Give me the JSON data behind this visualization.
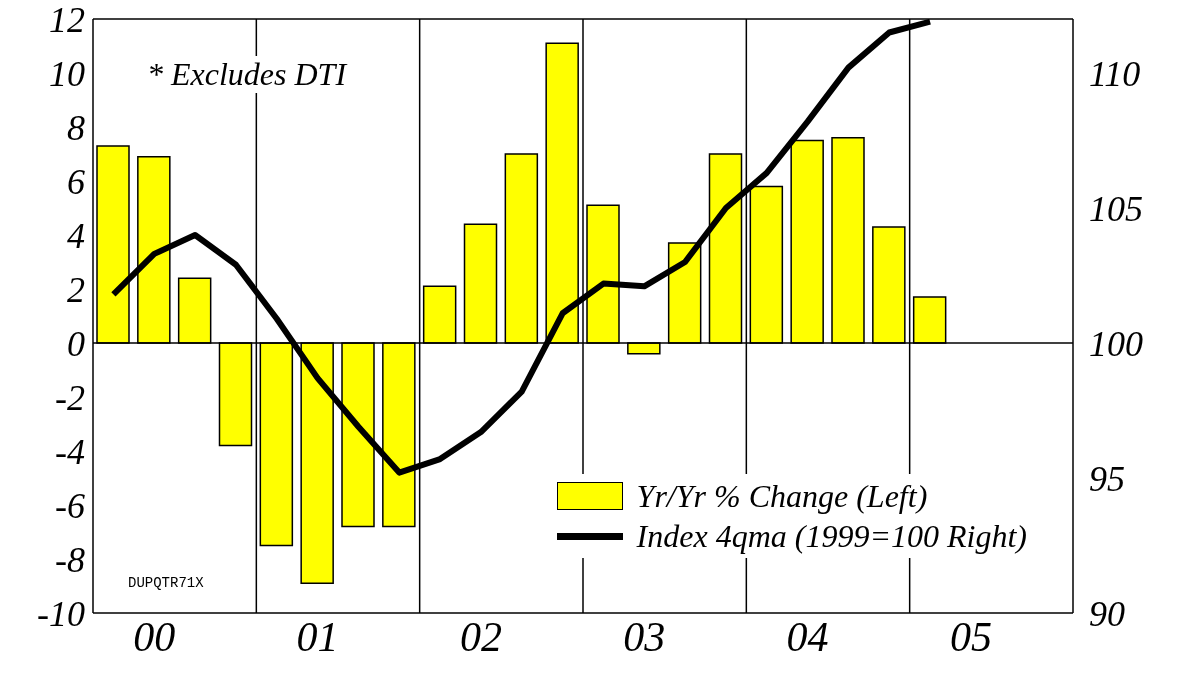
{
  "chart_data": {
    "type": "bar",
    "categories": [
      null,
      "00",
      null,
      null,
      null,
      "01",
      null,
      null,
      null,
      "02",
      null,
      null,
      null,
      "03",
      null,
      null,
      null,
      "04",
      null,
      null,
      null,
      "05",
      null,
      null
    ],
    "series": [
      {
        "name": "Yr/Yr % Change (Left)",
        "color": "#ffff00",
        "values": [
          7.3,
          6.9,
          2.4,
          -3.8,
          -7.5,
          -8.9,
          -6.8,
          -6.8,
          2.1,
          4.4,
          7.0,
          11.1,
          5.1,
          -0.4,
          3.7,
          7.0,
          5.8,
          7.5,
          7.6,
          4.3,
          1.7,
          null,
          null,
          null
        ]
      },
      {
        "name": "Index 4qma (1999=100 Right)",
        "type": "line",
        "axis": "y2",
        "color": "#000000",
        "values": [
          101.8,
          103.3,
          104.0,
          102.9,
          100.9,
          98.7,
          96.9,
          95.2,
          95.7,
          96.7,
          98.2,
          101.1,
          102.2,
          102.1,
          103.0,
          105.0,
          106.3,
          108.2,
          110.2,
          111.5,
          111.9,
          null,
          null,
          null
        ]
      }
    ],
    "ylim": [
      -10,
      12
    ],
    "yticks": [
      -10,
      -8,
      -6,
      -4,
      -2,
      0,
      2,
      4,
      6,
      8,
      10,
      12
    ],
    "y2lim": [
      90,
      112
    ],
    "y2ticks": [
      90,
      95,
      100,
      105,
      110
    ],
    "ref_lines": [
      {
        "axis": "y",
        "value": 0
      }
    ],
    "annotations": [
      "* Excludes DTI",
      "DUPQTR71X"
    ],
    "legend": "bottom right",
    "marker": "none",
    "grid": "x"
  }
}
